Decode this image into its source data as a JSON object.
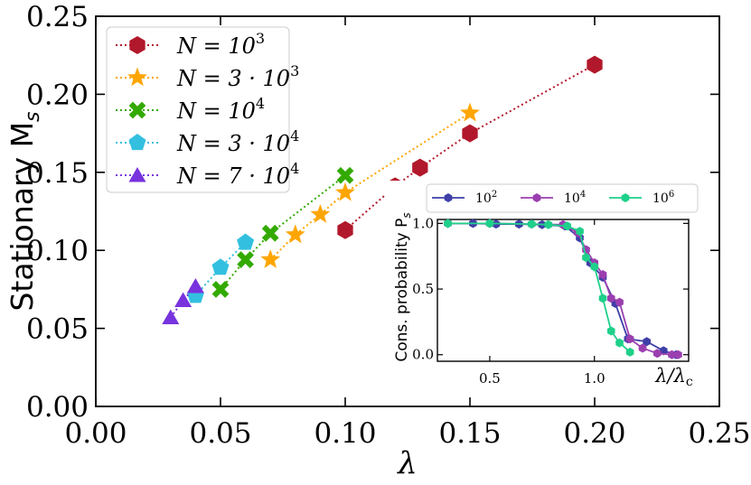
{
  "chart_data": [
    {
      "type": "line",
      "title": "",
      "xlabel": "λ",
      "ylabel": "Stationary M",
      "ylabel_sub": "s",
      "xlim": [
        0.0,
        0.25
      ],
      "ylim": [
        0.0,
        0.25
      ],
      "xticks": [
        "0.00",
        "0.05",
        "0.10",
        "0.15",
        "0.20",
        "0.25"
      ],
      "yticks": [
        "0.00",
        "0.05",
        "0.10",
        "0.15",
        "0.20",
        "0.25"
      ],
      "grid": false,
      "legend_placement": "top-left",
      "series": [
        {
          "name": "N = 10",
          "name_sup": "3",
          "color": "#b2182b",
          "marker": "hexagon",
          "x": [
            0.1,
            0.12,
            0.13,
            0.15,
            0.2
          ],
          "y": [
            0.113,
            0.141,
            0.153,
            0.175,
            0.219
          ]
        },
        {
          "name": "N = 3 · 10",
          "name_sup": "3",
          "color": "#ffa500",
          "marker": "star",
          "x": [
            0.07,
            0.08,
            0.09,
            0.1,
            0.15
          ],
          "y": [
            0.094,
            0.11,
            0.123,
            0.137,
            0.188
          ]
        },
        {
          "name": "N = 10",
          "name_sup": "4",
          "color": "#33aa00",
          "marker": "x",
          "x": [
            0.05,
            0.06,
            0.07,
            0.1
          ],
          "y": [
            0.075,
            0.094,
            0.111,
            0.148
          ]
        },
        {
          "name": "N = 3 · 10",
          "name_sup": "4",
          "color": "#33c0e0",
          "marker": "pentagon",
          "x": [
            0.04,
            0.05,
            0.06
          ],
          "y": [
            0.071,
            0.089,
            0.105
          ]
        },
        {
          "name": "N = 7 · 10",
          "name_sup": "4",
          "color": "#7733dd",
          "marker": "triangle",
          "x": [
            0.03,
            0.035,
            0.04
          ],
          "y": [
            0.057,
            0.068,
            0.077
          ]
        }
      ]
    },
    {
      "type": "line",
      "title": "",
      "xlabel": "λ/λ",
      "xlabel_sub": "c",
      "ylabel": "Cons. probability P",
      "ylabel_sub": "s",
      "xlim": [
        0.25,
        1.45
      ],
      "ylim": [
        -0.05,
        1.03
      ],
      "xticks": [
        "0.5",
        "1.0"
      ],
      "xtick_values": [
        0.5,
        1.0
      ],
      "yticks": [
        "0.0",
        "0.5",
        "1.0"
      ],
      "ytick_values": [
        0.0,
        0.5,
        1.0
      ],
      "grid": false,
      "legend_placement": "top",
      "series": [
        {
          "name": "10",
          "name_sup": "2",
          "color": "#3f3fa8",
          "x": [
            0.3,
            0.42,
            0.53,
            0.64,
            0.75,
            0.86,
            0.93,
            0.98,
            1.04,
            1.1,
            1.16,
            1.25,
            1.33,
            1.39
          ],
          "y": [
            1.0,
            1.0,
            0.995,
            0.995,
            0.99,
            0.98,
            0.89,
            0.7,
            0.59,
            0.39,
            0.12,
            0.1,
            0.03,
            0.0
          ]
        },
        {
          "name": "10",
          "name_sup": "4",
          "color": "#9b3fb0",
          "x": [
            0.3,
            0.5,
            0.7,
            0.85,
            0.92,
            0.96,
            1.0,
            1.04,
            1.08,
            1.12,
            1.17,
            1.23,
            1.3,
            1.37,
            1.4
          ],
          "y": [
            1.0,
            1.0,
            0.995,
            0.99,
            0.93,
            0.8,
            0.7,
            0.61,
            0.43,
            0.4,
            0.12,
            0.05,
            0.01,
            0.0,
            0.0
          ]
        },
        {
          "name": "10",
          "name_sup": "6",
          "color": "#1fd08a",
          "x": [
            0.3,
            0.5,
            0.7,
            0.78,
            0.87,
            0.93,
            0.96,
            1.0,
            1.04,
            1.08,
            1.12,
            1.17
          ],
          "y": [
            1.0,
            1.0,
            0.995,
            0.99,
            0.98,
            0.94,
            0.74,
            0.67,
            0.43,
            0.18,
            0.09,
            0.02
          ]
        }
      ]
    }
  ]
}
